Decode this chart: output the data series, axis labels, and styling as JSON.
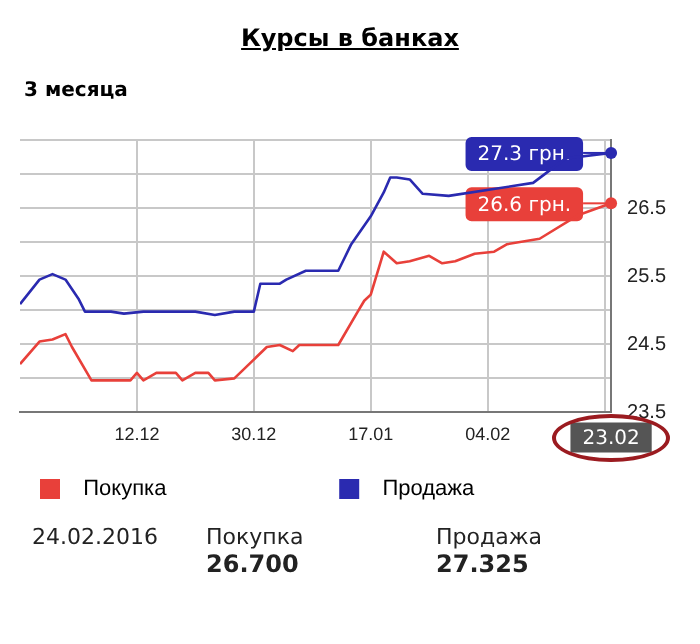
{
  "chart_data": {
    "type": "line",
    "title": "Курсы в банках",
    "subtitle": "3 месяца",
    "xlim": [
      "2015-11-24",
      "2016-02-23"
    ],
    "xticks": [
      {
        "value": "2015-12-12",
        "label": "12.12"
      },
      {
        "value": "2015-12-30",
        "label": "30.12"
      },
      {
        "value": "2016-01-17",
        "label": "17.01"
      },
      {
        "value": "2016-02-04",
        "label": "04.02"
      },
      {
        "value": "2016-02-22",
        "label": null
      }
    ],
    "ylim": [
      23.5,
      27.5
    ],
    "yticks": [
      23.5,
      {
        "value": 24,
        "label": null
      },
      24.5,
      {
        "value": 25,
        "label": null
      },
      25.5,
      {
        "value": 26,
        "label": null
      },
      26.5,
      {
        "value": 27,
        "label": null
      },
      {
        "value": 27.5,
        "label": null
      }
    ],
    "grid": true,
    "legend": "bottom",
    "marker": "none",
    "line_style": "solid",
    "series": [
      {
        "name": "Покупка",
        "color": "#e8403a",
        "x": [
          "2015-11-24",
          "2015-11-27",
          "2015-11-29",
          "2015-12-01",
          "2015-12-02",
          "2015-12-05",
          "2015-12-11",
          "2015-12-12",
          "2015-12-13",
          "2015-12-15",
          "2015-12-18",
          "2015-12-19",
          "2015-12-21",
          "2015-12-23",
          "2015-12-24",
          "2015-12-27",
          "2016-01-01",
          "2016-01-03",
          "2016-01-05",
          "2016-01-06",
          "2016-01-12",
          "2016-01-15",
          "2016-01-16",
          "2016-01-17",
          "2016-01-19",
          "2016-01-21",
          "2016-01-23",
          "2016-01-26",
          "2016-01-28",
          "2016-01-30",
          "2016-02-02",
          "2016-02-05",
          "2016-02-07",
          "2016-02-12",
          "2016-02-18",
          "2016-02-23"
        ],
        "values": [
          24.21,
          24.54,
          24.57,
          24.65,
          24.46,
          23.97,
          23.97,
          24.08,
          23.97,
          24.08,
          24.08,
          23.97,
          24.08,
          24.08,
          23.97,
          24.0,
          24.46,
          24.49,
          24.4,
          24.49,
          24.49,
          24.98,
          25.14,
          25.23,
          25.86,
          25.69,
          25.72,
          25.8,
          25.69,
          25.72,
          25.83,
          25.86,
          25.97,
          26.05,
          26.4,
          26.57
        ]
      },
      {
        "name": "Продажа",
        "color": "#2a2ab0",
        "x": [
          "2015-11-24",
          "2015-11-27",
          "2015-11-29",
          "2015-12-01",
          "2015-12-03",
          "2015-12-04",
          "2015-12-08",
          "2015-12-10",
          "2015-12-13",
          "2015-12-21",
          "2015-12-24",
          "2015-12-27",
          "2015-12-30",
          "2015-12-31",
          "2016-01-03",
          "2016-01-04",
          "2016-01-07",
          "2016-01-12",
          "2016-01-14",
          "2016-01-17",
          "2016-01-19",
          "2016-01-20",
          "2016-01-21",
          "2016-01-23",
          "2016-01-25",
          "2016-01-29",
          "2016-02-11",
          "2016-02-16",
          "2016-02-23"
        ],
        "values": [
          25.09,
          25.45,
          25.53,
          25.45,
          25.17,
          24.98,
          24.98,
          24.95,
          24.98,
          24.98,
          24.93,
          24.98,
          24.98,
          25.39,
          25.39,
          25.45,
          25.58,
          25.58,
          25.97,
          26.38,
          26.73,
          26.95,
          26.95,
          26.92,
          26.71,
          26.68,
          26.87,
          27.23,
          27.31
        ]
      }
    ],
    "annotations": [
      {
        "text": "27.3 грн.",
        "x": "2016-02-23",
        "y": 27.31
      },
      {
        "text": "26.6 грн.",
        "x": "2016-02-23",
        "y": 26.57
      },
      "23.02",
      "24.02.2016",
      "Покупка",
      "26.700",
      "Продажа",
      "27.325"
    ]
  }
}
